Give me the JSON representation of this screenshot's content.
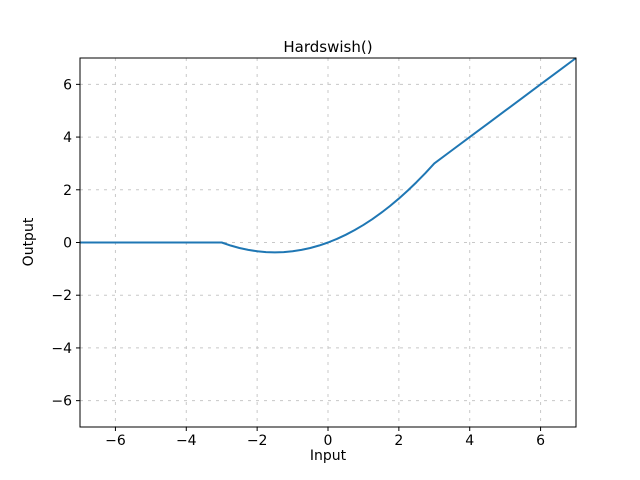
{
  "figure": {
    "title": "Hardswish()",
    "xlabel": "Input",
    "ylabel": "Output"
  },
  "chart_data": {
    "type": "line",
    "title": "Hardswish()",
    "xlabel": "Input",
    "ylabel": "Output",
    "xlim": [
      -7,
      7
    ],
    "ylim": [
      -7,
      7
    ],
    "xticks": [
      -6,
      -4,
      -2,
      0,
      2,
      4,
      6
    ],
    "yticks": [
      -6,
      -4,
      -2,
      0,
      2,
      4,
      6
    ],
    "grid": true,
    "grid_color": "#c8c8c8",
    "line_color": "#1f77b4",
    "spine_color": "#000000",
    "legend": "none",
    "series": [
      {
        "name": "Hardswish",
        "x": [
          -7,
          -6.5,
          -6,
          -5.5,
          -5,
          -4.5,
          -4,
          -3.5,
          -3,
          -2.75,
          -2.5,
          -2.25,
          -2,
          -1.75,
          -1.5,
          -1.25,
          -1,
          -0.75,
          -0.5,
          -0.25,
          0,
          0.25,
          0.5,
          0.75,
          1,
          1.25,
          1.5,
          1.75,
          2,
          2.25,
          2.5,
          2.75,
          3,
          3.5,
          4,
          4.5,
          5,
          5.5,
          6,
          6.5,
          7
        ],
        "y": [
          0,
          0,
          0,
          0,
          0,
          0,
          0,
          0,
          0,
          -0.1146,
          -0.2083,
          -0.2813,
          -0.3333,
          -0.3646,
          -0.375,
          -0.3646,
          -0.3333,
          -0.2813,
          -0.2083,
          -0.1146,
          0,
          0.1354,
          0.2917,
          0.4688,
          0.6667,
          0.8854,
          1.125,
          1.3854,
          1.6667,
          1.9688,
          2.2917,
          2.6354,
          3,
          3.5,
          4,
          4.5,
          5,
          5.5,
          6,
          6.5,
          7
        ]
      }
    ]
  }
}
